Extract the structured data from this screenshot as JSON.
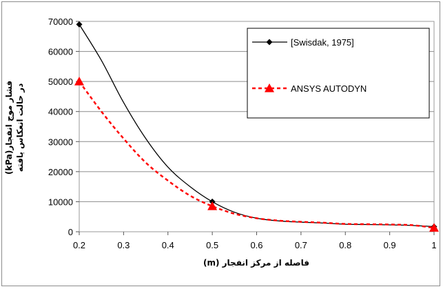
{
  "chart_data": {
    "type": "line",
    "xlabel": "فاصله از مرکز انفجار (m)",
    "ylabel_line1": "فشار موج انفجار(kPa)",
    "ylabel_line2": "در حالت انعکاس یافته",
    "xlim": [
      0.2,
      1.0
    ],
    "ylim": [
      0,
      70000
    ],
    "x_ticks": [
      "0.2",
      "0.3",
      "0.4",
      "0.5",
      "0.6",
      "0.7",
      "0.8",
      "0.9",
      "1"
    ],
    "y_ticks": [
      "0",
      "10000",
      "20000",
      "30000",
      "40000",
      "50000",
      "60000",
      "70000"
    ],
    "grid": "horizontal",
    "legend_position": "right",
    "series": [
      {
        "name": "[Swisdak, 1975]",
        "color": "#000000",
        "style": "solid",
        "marker": "diamond",
        "marker_x": [
          0.2,
          0.5,
          1.0
        ],
        "marker_y": [
          69000,
          10000,
          1700
        ],
        "x": [
          0.2,
          0.25,
          0.3,
          0.35,
          0.4,
          0.45,
          0.5,
          0.55,
          0.6,
          0.65,
          0.7,
          0.75,
          0.8,
          0.85,
          0.9,
          0.95,
          1.0
        ],
        "y": [
          69000,
          57000,
          43000,
          31000,
          21500,
          15000,
          10000,
          6500,
          4500,
          3600,
          3200,
          2900,
          2500,
          2400,
          2300,
          2100,
          1700
        ]
      },
      {
        "name": "ANSYS AUTODYN",
        "color": "#ff0000",
        "style": "dashed",
        "marker": "triangle",
        "marker_x": [
          0.2,
          0.5,
          1.0
        ],
        "marker_y": [
          50000,
          8500,
          1300
        ],
        "x": [
          0.2,
          0.25,
          0.3,
          0.35,
          0.4,
          0.45,
          0.5,
          0.55,
          0.6,
          0.65,
          0.7,
          0.75,
          0.8,
          0.85,
          0.9,
          0.95,
          1.0
        ],
        "y": [
          50000,
          40000,
          31000,
          23000,
          17000,
          12000,
          8500,
          6000,
          4500,
          3700,
          3300,
          3000,
          2600,
          2500,
          2400,
          2200,
          1300
        ]
      }
    ]
  }
}
